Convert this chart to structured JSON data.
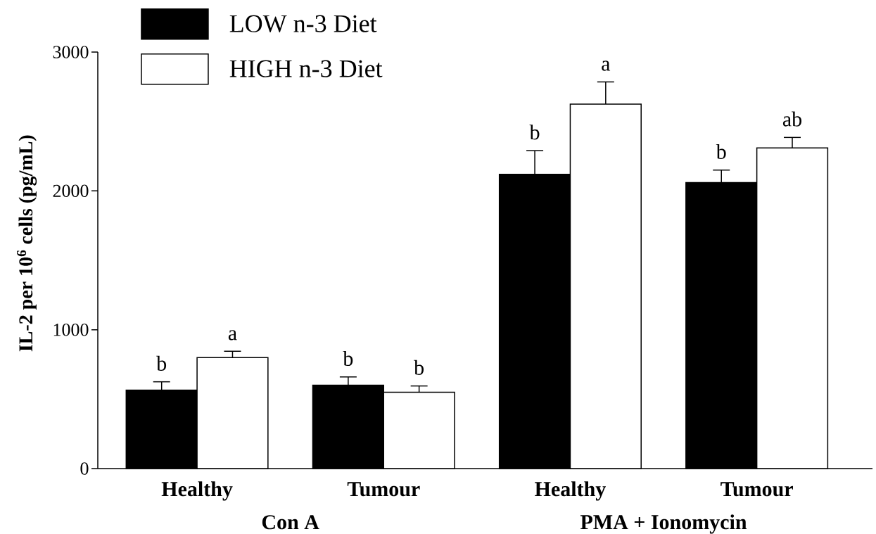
{
  "chart_data": {
    "type": "bar",
    "categories": [
      "Healthy",
      "Tumour",
      "Healthy",
      "Tumour"
    ],
    "ylabel": "IL-2 per 10$^{6}$ cells (pg/mL)",
    "series": [
      {
        "name": "LOW n-3 Diet",
        "color": "#000000",
        "values": [
          565,
          600,
          2120,
          2060
        ],
        "errors": [
          [
            565,
            625
          ],
          [
            600,
            660
          ],
          [
            2120,
            2290
          ],
          [
            2060,
            2150
          ]
        ],
        "value_labels": [
          "b",
          "b",
          "b",
          "b"
        ]
      },
      {
        "name": "HIGH n-3 Diet",
        "color": "#ffffff",
        "values": [
          800,
          550,
          2625,
          2310
        ],
        "errors": [
          [
            800,
            845
          ],
          [
            550,
            595
          ],
          [
            2625,
            2785
          ],
          [
            2310,
            2385
          ]
        ],
        "value_labels": [
          "a",
          "b",
          "a",
          "ab"
        ]
      }
    ],
    "ylim": [
      0,
      3000
    ],
    "yticks": [
      0,
      1000,
      2000,
      3000
    ],
    "annotations": [
      "Con A",
      "PMA + Ionomycin"
    ],
    "legend": "top left"
  }
}
